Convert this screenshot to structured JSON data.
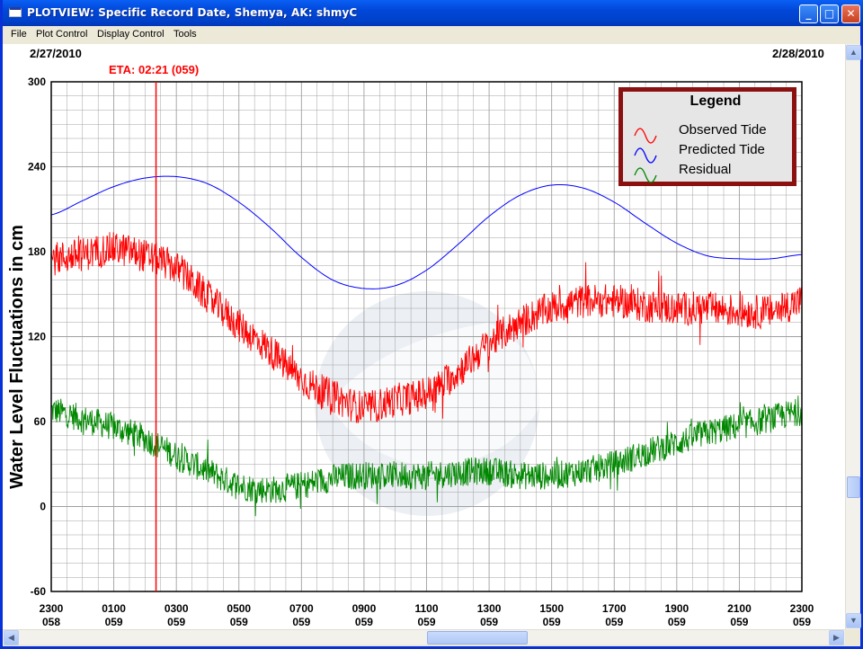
{
  "window": {
    "title": "PLOTVIEW: Specific Record Date, Shemya, AK: shmyC",
    "min_glyph": "_",
    "max_glyph": "□",
    "close_glyph": "✕"
  },
  "menu": [
    {
      "label": "File"
    },
    {
      "label": "Plot Control"
    },
    {
      "label": "Display Control"
    },
    {
      "label": "Tools"
    }
  ],
  "plot": {
    "date_left": "2/27/2010",
    "date_right": "2/28/2010",
    "eta_label": "ETA: 02:21 (059)",
    "ylabel": "Water Level Fluctuations in cm",
    "legend_title": "Legend",
    "legend": [
      {
        "name": "Observed Tide",
        "color": "#ff0000"
      },
      {
        "name": "Predicted Tide",
        "color": "#0000ff"
      },
      {
        "name": "Residual",
        "color": "#008800"
      }
    ],
    "colors": {
      "eta": "#ff0000",
      "legend_border": "#8b1010",
      "grid": "#a0a0a0",
      "watermark": "#dde3ec"
    }
  },
  "chart_data": {
    "type": "line",
    "ylim": [
      -60,
      300
    ],
    "yticks": [
      300,
      240,
      180,
      120,
      60,
      0,
      -60
    ],
    "xlim_hours": [
      23,
      47
    ],
    "x_tick_labels": [
      [
        "2300",
        "058"
      ],
      [
        "0100",
        "059"
      ],
      [
        "0300",
        "059"
      ],
      [
        "0500",
        "059"
      ],
      [
        "0700",
        "059"
      ],
      [
        "0900",
        "059"
      ],
      [
        "1100",
        "059"
      ],
      [
        "1300",
        "059"
      ],
      [
        "1500",
        "059"
      ],
      [
        "1700",
        "059"
      ],
      [
        "1900",
        "059"
      ],
      [
        "2100",
        "059"
      ],
      [
        "2300",
        "059"
      ]
    ],
    "eta_hour": 26.35,
    "series": [
      {
        "name": "Observed Tide",
        "x": [
          23,
          24,
          25,
          26,
          27,
          28,
          29,
          30,
          31,
          32,
          33,
          34,
          35,
          36,
          37,
          38,
          39,
          40,
          41,
          42,
          43,
          44,
          45,
          46,
          47
        ],
        "y": [
          175,
          178,
          182,
          177,
          168,
          148,
          128,
          110,
          90,
          78,
          70,
          75,
          80,
          95,
          115,
          130,
          140,
          145,
          145,
          142,
          140,
          140,
          138,
          138,
          145
        ],
        "noise": 12
      },
      {
        "name": "Predicted Tide",
        "x": [
          23,
          24,
          25,
          26,
          27,
          28,
          29,
          30,
          31,
          32,
          33,
          34,
          35,
          36,
          37,
          38,
          39,
          40,
          41,
          42,
          43,
          44,
          45,
          46,
          47
        ],
        "y": [
          206,
          216,
          226,
          232,
          233,
          228,
          215,
          197,
          176,
          160,
          154,
          156,
          167,
          185,
          205,
          220,
          227,
          225,
          215,
          200,
          186,
          177,
          175,
          175,
          178
        ],
        "noise": 0
      },
      {
        "name": "Residual",
        "x": [
          23,
          24,
          25,
          26,
          27,
          28,
          29,
          30,
          31,
          32,
          33,
          34,
          35,
          36,
          37,
          38,
          39,
          40,
          41,
          42,
          43,
          44,
          45,
          46,
          47
        ],
        "y": [
          68,
          62,
          56,
          48,
          36,
          25,
          15,
          12,
          15,
          20,
          22,
          22,
          22,
          24,
          25,
          22,
          22,
          25,
          30,
          38,
          45,
          52,
          57,
          62,
          67
        ],
        "noise": 10
      }
    ]
  }
}
